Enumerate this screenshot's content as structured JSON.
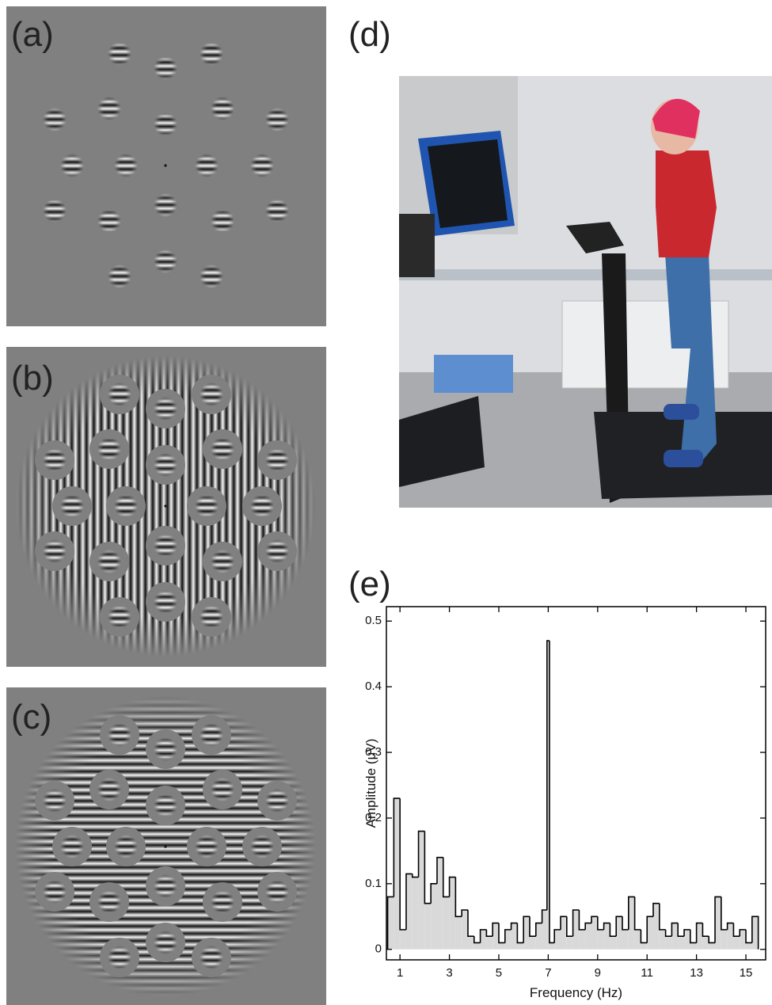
{
  "panels": {
    "a": "(a)",
    "b": "(b)",
    "c": "(c)",
    "d": "(d)",
    "e": "(e)"
  },
  "chart_data": {
    "type": "histogram",
    "xlabel": "Frequency (Hz)",
    "ylabel": "Amplitude (μV)",
    "bins": [
      0.5,
      0.75,
      1,
      1.25,
      1.5,
      1.75,
      2,
      2.25,
      2.5,
      2.75,
      3,
      3.25,
      3.5,
      3.75,
      4,
      4.25,
      4.5,
      4.75,
      5,
      5.25,
      5.5,
      5.75,
      6,
      6.25,
      6.5,
      6.75,
      6.95,
      7.05,
      7.25,
      7.5,
      7.75,
      8,
      8.25,
      8.5,
      8.75,
      9,
      9.25,
      9.5,
      9.75,
      10,
      10.25,
      10.5,
      10.75,
      11,
      11.25,
      11.5,
      11.75,
      12,
      12.25,
      12.5,
      12.75,
      13,
      13.25,
      13.5,
      13.75,
      14,
      14.25,
      14.5,
      14.75,
      15,
      15.25,
      15.5
    ],
    "values": [
      0.08,
      0.23,
      0.03,
      0.115,
      0.11,
      0.18,
      0.07,
      0.1,
      0.14,
      0.08,
      0.11,
      0.05,
      0.06,
      0.02,
      0.01,
      0.03,
      0.02,
      0.04,
      0.01,
      0.03,
      0.04,
      0.01,
      0.05,
      0.02,
      0.04,
      0.06,
      0.47,
      0.01,
      0.03,
      0.05,
      0.02,
      0.06,
      0.03,
      0.04,
      0.05,
      0.03,
      0.04,
      0.02,
      0.05,
      0.03,
      0.08,
      0.03,
      0.01,
      0.05,
      0.07,
      0.03,
      0.02,
      0.04,
      0.02,
      0.03,
      0.01,
      0.04,
      0.02,
      0.01,
      0.08,
      0.03,
      0.04,
      0.02,
      0.03,
      0.01,
      0.05
    ],
    "color": "#d9d9d9",
    "line_color": "#000000",
    "xlim": [
      0.45,
      15.8
    ],
    "ylim": [
      -0.016,
      0.522
    ],
    "xticks": [
      1,
      3,
      5,
      7,
      9,
      11,
      13,
      15
    ],
    "yticks": [
      0,
      0.1,
      0.2,
      0.3,
      0.4,
      0.5
    ]
  }
}
